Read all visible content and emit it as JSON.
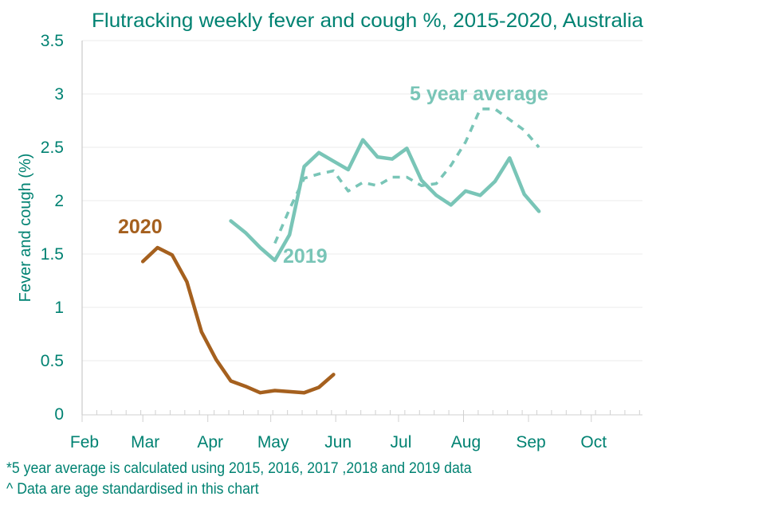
{
  "chart_data": {
    "type": "line",
    "title": "Flutracking weekly fever and cough %, 2015-2020, Australia",
    "xlabel": "",
    "ylabel": "Fever and cough (%)",
    "ylim": [
      0,
      3.5
    ],
    "yticks": [
      "0",
      "0.5",
      "1",
      "1.5",
      "2",
      "2.5",
      "3",
      "3.5"
    ],
    "ytick_values": [
      0,
      0.5,
      1,
      1.5,
      2,
      2.5,
      3,
      3.5
    ],
    "xticks": [
      "Feb",
      "Mar",
      "Apr",
      "May",
      "Jun",
      "Jul",
      "Aug",
      "Sep",
      "Oct"
    ],
    "x_unit": "week index from 1 Feb",
    "month_start_weeks": [
      0,
      4.14,
      8.57,
      12.86,
      17.29,
      21.57,
      26.0,
      30.43,
      34.71
    ],
    "x_max_week": 38.2,
    "grid": "horizontal",
    "series": [
      {
        "name": "2020",
        "label": "2020",
        "color": "#A5601E",
        "style": "solid",
        "x": [
          4.14,
          5.14,
          6.14,
          7.14,
          8.14,
          9.14,
          10.14,
          11.14,
          12.14,
          13.14,
          14.14,
          15.14,
          16.14,
          17.14
        ],
        "values": [
          1.43,
          1.56,
          1.49,
          1.24,
          0.77,
          0.51,
          0.31,
          0.26,
          0.2,
          0.22,
          0.21,
          0.2,
          0.25,
          0.37
        ]
      },
      {
        "name": "2019",
        "label": "2019",
        "color": "#79C5B7",
        "style": "solid",
        "x": [
          10.14,
          11.14,
          12.14,
          13.14,
          14.14,
          15.14,
          16.14,
          17.14,
          18.14,
          19.14,
          20.14,
          21.14,
          22.14,
          23.14,
          24.14,
          25.14,
          26.14,
          27.14,
          28.14,
          29.14,
          30.14,
          31.14
        ],
        "values": [
          1.81,
          1.7,
          1.56,
          1.44,
          1.68,
          2.32,
          2.45,
          2.37,
          2.29,
          2.57,
          2.41,
          2.39,
          2.49,
          2.19,
          2.05,
          1.96,
          2.09,
          2.05,
          2.18,
          2.4,
          2.06,
          1.9
        ]
      },
      {
        "name": "5 year average",
        "label": "5 year average",
        "color": "#79C5B7",
        "style": "dashed",
        "x": [
          13.14,
          14.14,
          15.14,
          16.14,
          17.14,
          18.14,
          19.14,
          20.14,
          21.14,
          22.14,
          23.14,
          24.14,
          25.14,
          26.14,
          27.14,
          28.14,
          29.14,
          30.14,
          31.14
        ],
        "values": [
          1.6,
          1.92,
          2.21,
          2.25,
          2.28,
          2.09,
          2.17,
          2.14,
          2.22,
          2.22,
          2.14,
          2.16,
          2.33,
          2.55,
          2.86,
          2.86,
          2.76,
          2.66,
          2.5
        ]
      }
    ],
    "annotations": [
      "*5 year average is calculated using 2015, 2016, 2017 ,2018 and 2019 data",
      "^ Data are age standardised in this chart"
    ]
  },
  "footnotes": {
    "line1": "*5 year average is calculated using 2015, 2016, 2017 ,2018 and 2019 data",
    "line2": "^ Data are age standardised in this chart"
  }
}
